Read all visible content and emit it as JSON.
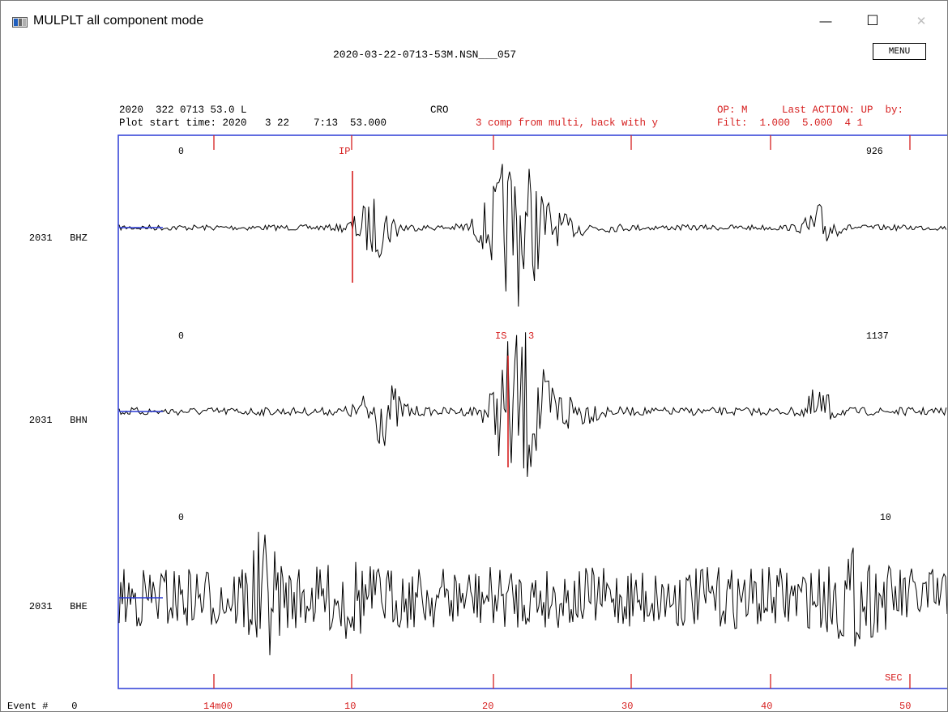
{
  "window": {
    "title": "MULPLT all component mode",
    "minimize_glyph": "—",
    "maximize_glyph": "☐",
    "close_glyph": "✕"
  },
  "header": {
    "filename": "2020-03-22-0713-53M.NSN___057",
    "menu_label": "MENU",
    "line1_left": "2020  322 0713 53.0 L",
    "line1_station": "CRO",
    "line1_op": "OP: M",
    "line1_action": "Last ACTION: UP  by:",
    "line2_left": "Plot start time: 2020   3 22    7:13  53.000",
    "line2_mode": "3 comp from multi, back with y",
    "line2_filter": "Filt:  1.000  5.000  4 1"
  },
  "traces": [
    {
      "station": "2031",
      "component": "BHZ",
      "amp_left": "0",
      "amp_right": "926"
    },
    {
      "station": "2031",
      "component": "BHN",
      "amp_left": "0",
      "amp_right": "1137"
    },
    {
      "station": "2031",
      "component": "BHE",
      "amp_left": "0",
      "amp_right": "10"
    }
  ],
  "picks": {
    "p_label": "IP",
    "s_label": "IS",
    "s_weight": "3"
  },
  "axis": {
    "ticks": [
      "14m00",
      "10",
      "20",
      "30",
      "40",
      "50"
    ],
    "unit": "SEC"
  },
  "footer": {
    "event_label": "Event #",
    "event_number": "0"
  },
  "colors": {
    "frame": "#2b3bd6",
    "pick": "#d61f1f",
    "trace": "#000000",
    "annotation": "#d61f1f"
  }
}
